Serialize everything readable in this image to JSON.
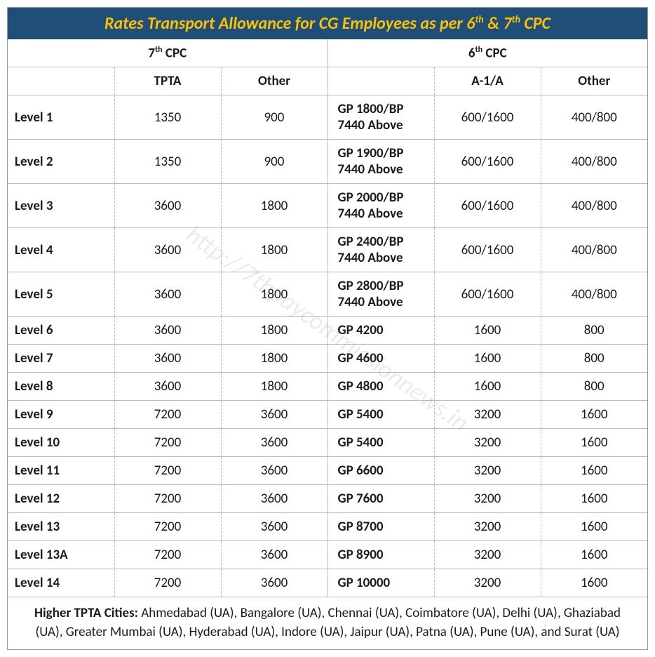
{
  "title_html": "Rates Transport Allowance for CG Employees as per 6<sup>th</sup> & 7<sup>th</sup> CPC",
  "group_headers": {
    "cpc7_html": "7<sup>th</sup> CPC",
    "cpc6_html": "6<sup>th</sup> CPC"
  },
  "columns": {
    "level": "",
    "tpta": "TPTA",
    "other7": "Other",
    "gp": "",
    "a1a": "A-1/A",
    "other6": "Other"
  },
  "rows": [
    {
      "level": "Level 1",
      "tpta": "1350",
      "other7": "900",
      "gp": "GP 1800/BP 7440 Above",
      "a1a": "600/1600",
      "other6": "400/800"
    },
    {
      "level": "Level 2",
      "tpta": "1350",
      "other7": "900",
      "gp": "GP 1900/BP 7440 Above",
      "a1a": "600/1600",
      "other6": "400/800"
    },
    {
      "level": "Level 3",
      "tpta": "3600",
      "other7": "1800",
      "gp": "GP 2000/BP 7440 Above",
      "a1a": "600/1600",
      "other6": "400/800"
    },
    {
      "level": "Level 4",
      "tpta": "3600",
      "other7": "1800",
      "gp": "GP 2400/BP 7440 Above",
      "a1a": "600/1600",
      "other6": "400/800"
    },
    {
      "level": "Level 5",
      "tpta": "3600",
      "other7": "1800",
      "gp": "GP 2800/BP 7440 Above",
      "a1a": "600/1600",
      "other6": "400/800"
    },
    {
      "level": "Level 6",
      "tpta": "3600",
      "other7": "1800",
      "gp": "GP 4200",
      "a1a": "1600",
      "other6": "800"
    },
    {
      "level": "Level 7",
      "tpta": "3600",
      "other7": "1800",
      "gp": "GP 4600",
      "a1a": "1600",
      "other6": "800"
    },
    {
      "level": "Level 8",
      "tpta": "3600",
      "other7": "1800",
      "gp": "GP 4800",
      "a1a": "1600",
      "other6": "800"
    },
    {
      "level": "Level 9",
      "tpta": "7200",
      "other7": "3600",
      "gp": "GP 5400",
      "a1a": "3200",
      "other6": "1600"
    },
    {
      "level": "Level 10",
      "tpta": "7200",
      "other7": "3600",
      "gp": "GP 5400",
      "a1a": "3200",
      "other6": "1600"
    },
    {
      "level": "Level 11",
      "tpta": "7200",
      "other7": "3600",
      "gp": "GP 6600",
      "a1a": "3200",
      "other6": "1600"
    },
    {
      "level": "Level 12",
      "tpta": "7200",
      "other7": "3600",
      "gp": "GP 7600",
      "a1a": "3200",
      "other6": "1600"
    },
    {
      "level": "Level 13",
      "tpta": "7200",
      "other7": "3600",
      "gp": "GP 8700",
      "a1a": "3200",
      "other6": "1600"
    },
    {
      "level": "Level 13A",
      "tpta": "7200",
      "other7": "3600",
      "gp": "GP 8900",
      "a1a": "3200",
      "other6": "1600"
    },
    {
      "level": "Level 14",
      "tpta": "7200",
      "other7": "3600",
      "gp": "GP 10000",
      "a1a": "3200",
      "other6": "1600"
    }
  ],
  "footer": {
    "label": "Higher TPTA Cities:",
    "text": " Ahmedabad (UA), Bangalore (UA), Chennai (UA), Coimbatore (UA), Delhi (UA), Ghaziabad (UA), Greater Mumbai (UA), Hyderabad (UA), Indore (UA), Jaipur (UA), Patna (UA), Pune (UA), and Surat (UA)"
  },
  "watermark": "http://7thpaycommissionnews.in",
  "style": {
    "title_bg": "#1f4e79",
    "title_color": "#ffc000",
    "border_color": "#bbbbbb",
    "text_color": "#1a1a1a",
    "font_family": "Calibri, 'Segoe UI', Arial, sans-serif",
    "title_fontsize": 24,
    "cell_fontsize": 19
  }
}
